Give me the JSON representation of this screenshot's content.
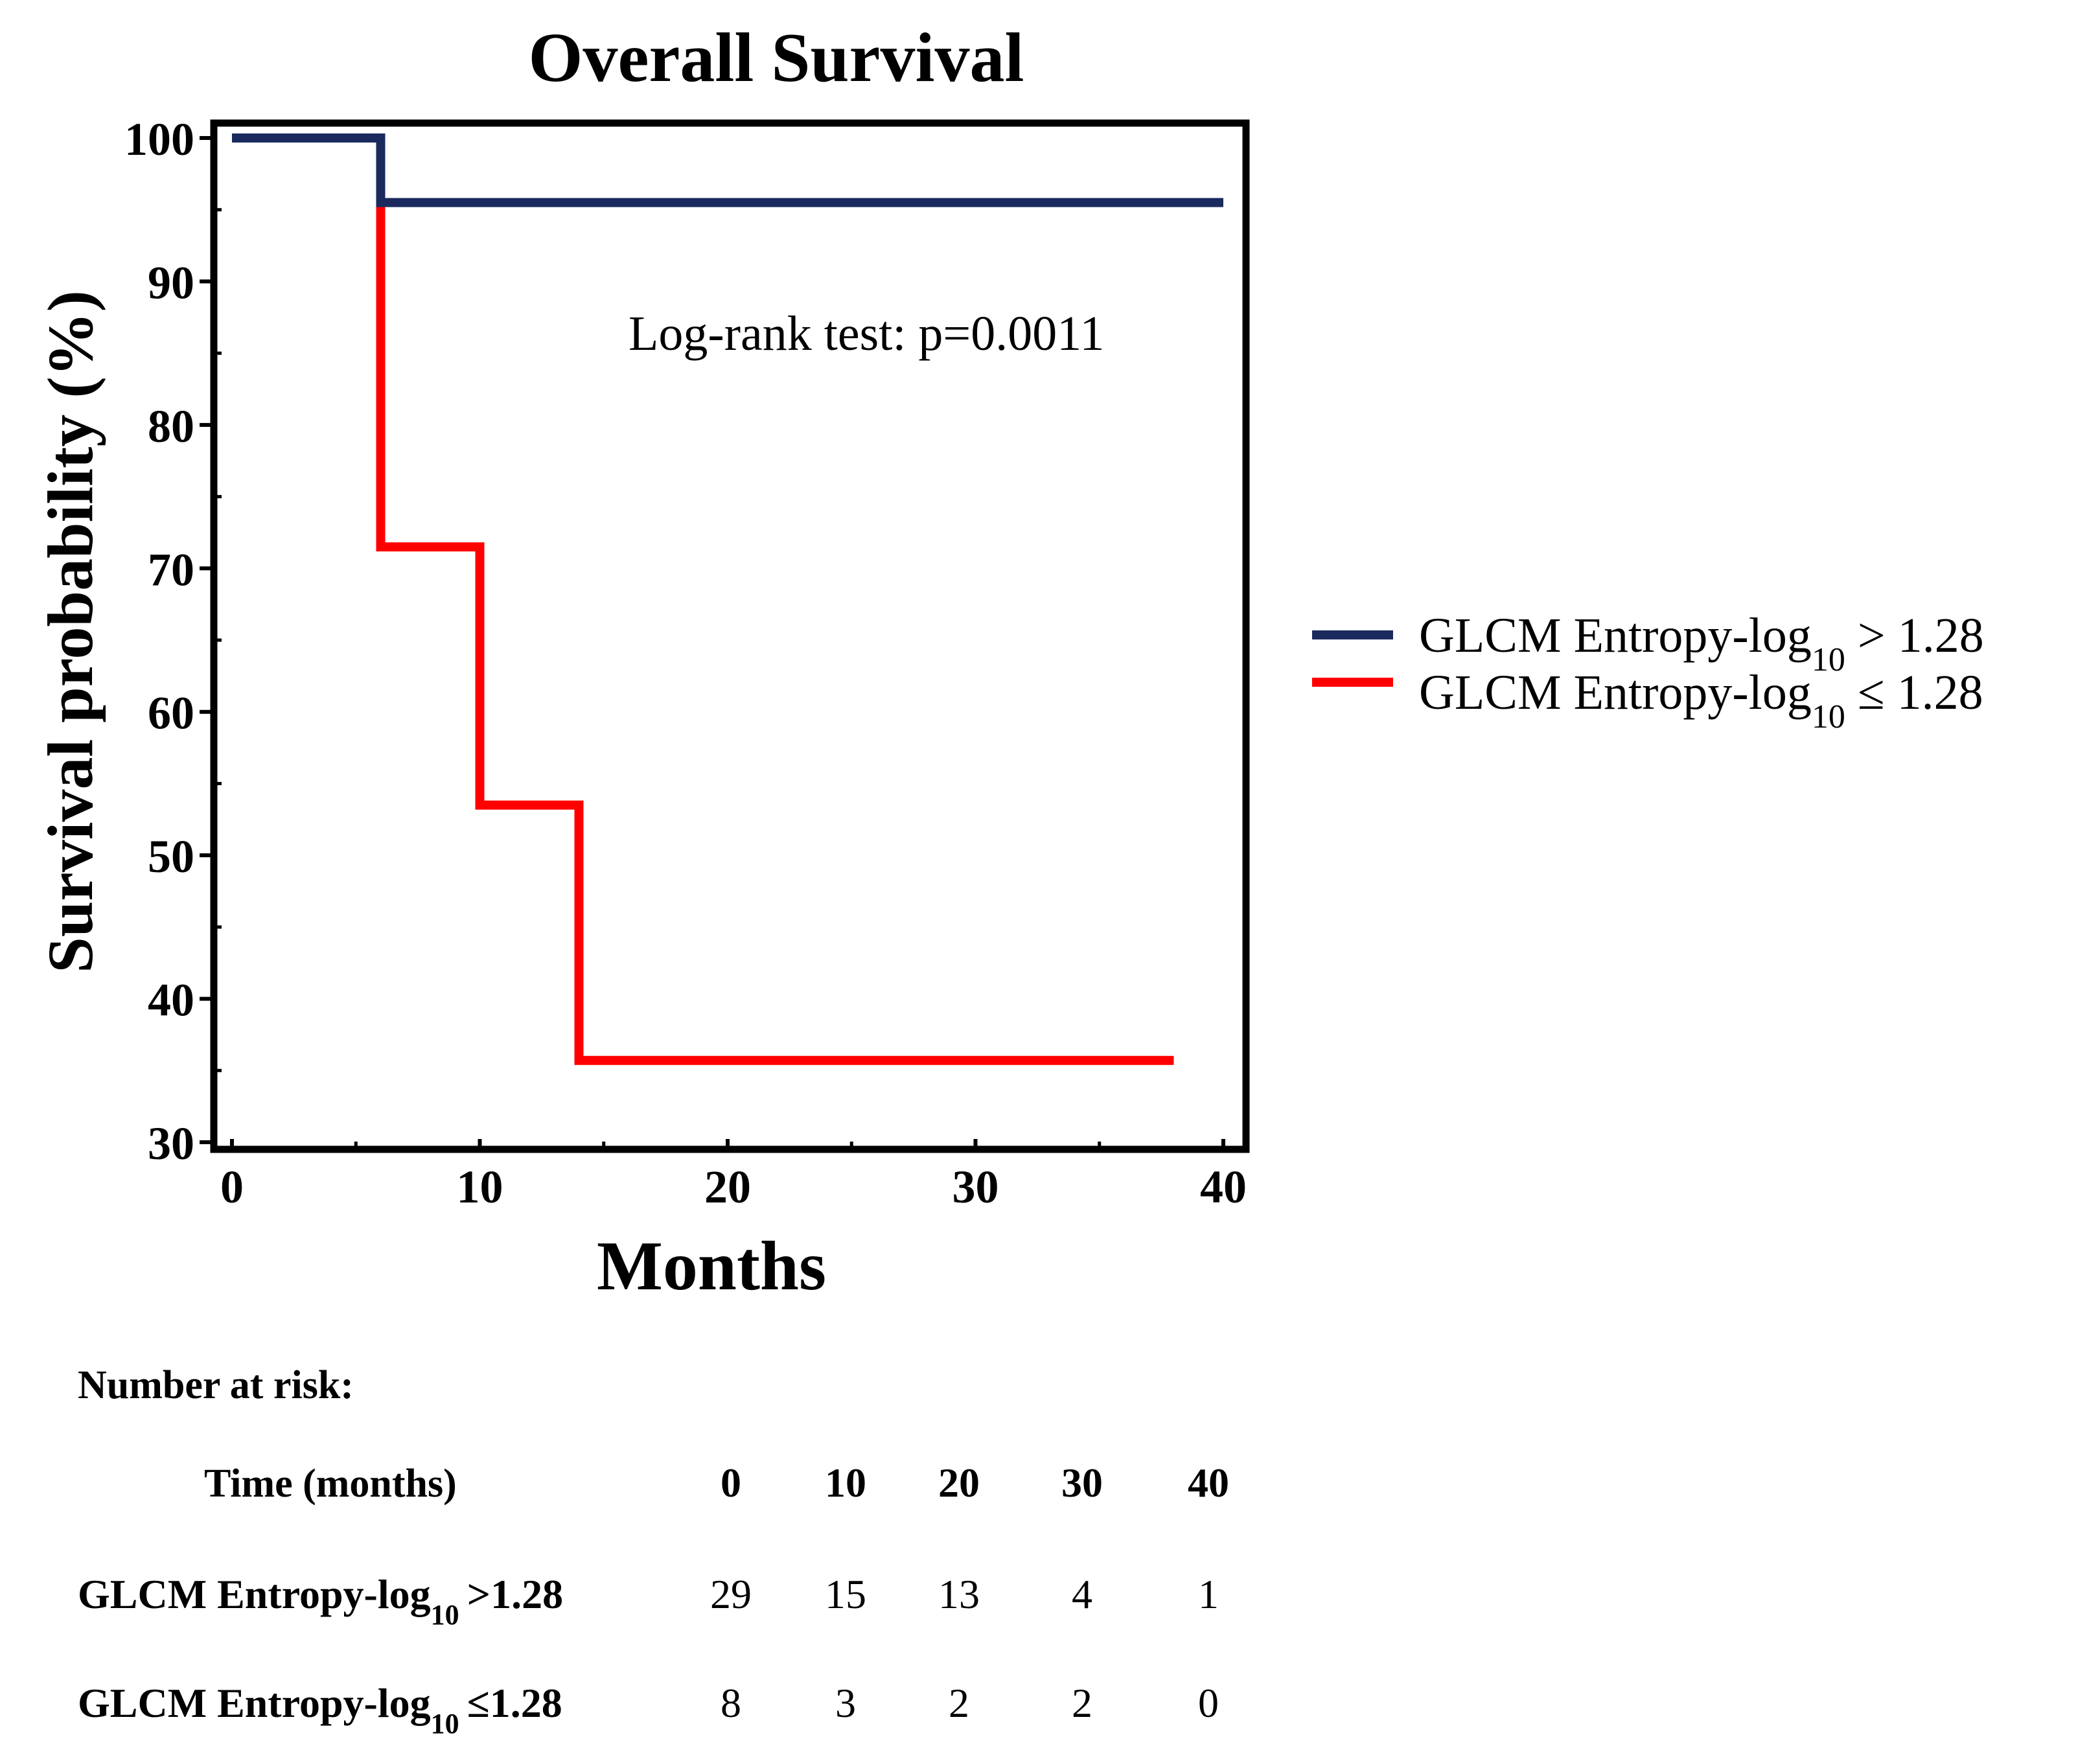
{
  "chart_data": {
    "type": "line",
    "subtype": "kaplan-meier-step",
    "title": "Overall Survival",
    "xlabel": "Months",
    "ylabel": "Survival probability (%)",
    "xlim": [
      0,
      40
    ],
    "ylim": [
      30,
      100
    ],
    "xticks": [
      0,
      10,
      20,
      30,
      40
    ],
    "yticks": [
      30,
      40,
      50,
      60,
      70,
      80,
      90,
      100
    ],
    "annotation": "Log-rank test: p=0.0011",
    "legend_position": "right",
    "series": [
      {
        "name": "GLCM Entropy-log10 > 1.28",
        "label_main": "GLCM Entropy-log",
        "label_sub": "10",
        "label_rest": " > 1.28",
        "color": "#1a2a5e",
        "x": [
          0,
          6,
          40
        ],
        "y": [
          100,
          95.5,
          95.5
        ]
      },
      {
        "name": "GLCM Entropy-log10 ≤ 1.28",
        "label_main": "GLCM Entropy-log",
        "label_sub": "10",
        "label_rest": " ≤ 1.28",
        "color": "#ff0000",
        "x": [
          0,
          6,
          10,
          14,
          38
        ],
        "y": [
          100,
          71.5,
          53.5,
          35.7,
          35.7
        ]
      }
    ]
  },
  "risk_table": {
    "heading": "Number at risk:",
    "time_label": "Time (months)",
    "times": [
      "0",
      "10",
      "20",
      "30",
      "40"
    ],
    "rows": [
      {
        "label_main": "GLCM Entropy-log",
        "label_sub": "10",
        "label_rest": ">1.28",
        "counts": [
          "29",
          "15",
          "13",
          "4",
          "1"
        ]
      },
      {
        "label_main": "GLCM Entropy-log",
        "label_sub": "10",
        "label_rest": "≤1.28",
        "counts": [
          "8",
          "3",
          "2",
          "2",
          "0"
        ]
      }
    ]
  }
}
